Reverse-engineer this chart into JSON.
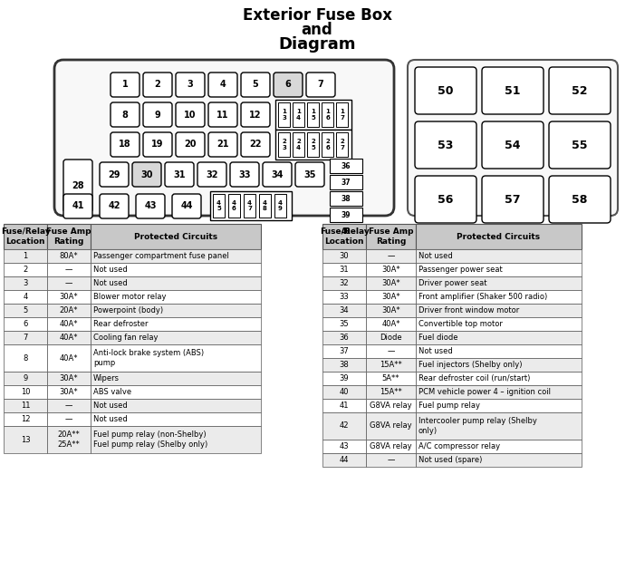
{
  "bg_color": "#ffffff",
  "title1": "Exterior Fuse Box",
  "title2": "and",
  "title3": "Diagram",
  "left_table": {
    "headers": [
      "Fuse/Relay\nLocation",
      "Fuse Amp\nRating",
      "Protected Circuits"
    ],
    "rows": [
      [
        "1",
        "80A*",
        "Passenger compartment fuse panel"
      ],
      [
        "2",
        "—",
        "Not used"
      ],
      [
        "3",
        "—",
        "Not used"
      ],
      [
        "4",
        "30A*",
        "Blower motor relay"
      ],
      [
        "5",
        "20A*",
        "Powerpoint (body)"
      ],
      [
        "6",
        "40A*",
        "Rear defroster"
      ],
      [
        "7",
        "40A*",
        "Cooling fan relay"
      ],
      [
        "8",
        "40A*",
        "Anti-lock brake system (ABS)\npump"
      ],
      [
        "9",
        "30A*",
        "Wipers"
      ],
      [
        "10",
        "30A*",
        "ABS valve"
      ],
      [
        "11",
        "—",
        "Not used"
      ],
      [
        "12",
        "—",
        "Not used"
      ],
      [
        "13",
        "20A**\n25A**",
        "Fuel pump relay (non-Shelby)\nFuel pump relay (Shelby only)"
      ]
    ]
  },
  "right_table": {
    "headers": [
      "Fuse/Relay\nLocation",
      "Fuse Amp\nRating",
      "Protected Circuits"
    ],
    "rows": [
      [
        "30",
        "—",
        "Not used"
      ],
      [
        "31",
        "30A*",
        "Passenger power seat"
      ],
      [
        "32",
        "30A*",
        "Driver power seat"
      ],
      [
        "33",
        "30A*",
        "Front amplifier (Shaker 500 radio)"
      ],
      [
        "34",
        "30A*",
        "Driver front window motor"
      ],
      [
        "35",
        "40A*",
        "Convertible top motor"
      ],
      [
        "36",
        "Diode",
        "Fuel diode"
      ],
      [
        "37",
        "—",
        "Not used"
      ],
      [
        "38",
        "15A**",
        "Fuel injectors (Shelby only)"
      ],
      [
        "39",
        "5A**",
        "Rear defroster coil (run/start)"
      ],
      [
        "40",
        "15A**",
        "PCM vehicle power 4 – ignition coil"
      ],
      [
        "41",
        "G8VA relay",
        "Fuel pump relay"
      ],
      [
        "42",
        "G8VA relay",
        "Intercooler pump relay (Shelby\nonly)"
      ],
      [
        "43",
        "G8VA relay",
        "A/C compressor relay"
      ],
      [
        "44",
        "—",
        "Not used (spare)"
      ]
    ]
  }
}
